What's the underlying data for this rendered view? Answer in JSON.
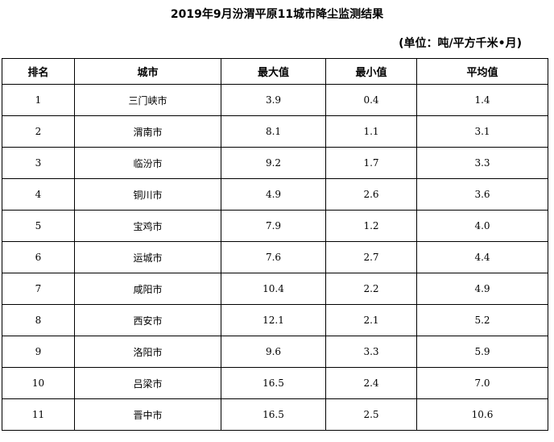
{
  "title": "2019年9月汾渭平原11城市降尘监测结果",
  "unit": "(单位：吨/平方千米•月)",
  "table": {
    "headers": [
      "排名",
      "城市",
      "最大值",
      "最小值",
      "平均值"
    ],
    "rows": [
      [
        "1",
        "三门峡市",
        "3.9",
        "0.4",
        "1.4"
      ],
      [
        "2",
        "渭南市",
        "8.1",
        "1.1",
        "3.1"
      ],
      [
        "3",
        "临汾市",
        "9.2",
        "1.7",
        "3.3"
      ],
      [
        "4",
        "铜川市",
        "4.9",
        "2.6",
        "3.6"
      ],
      [
        "5",
        "宝鸡市",
        "7.9",
        "1.2",
        "4.0"
      ],
      [
        "6",
        "运城市",
        "7.6",
        "2.7",
        "4.4"
      ],
      [
        "7",
        "咸阳市",
        "10.4",
        "2.2",
        "4.9"
      ],
      [
        "8",
        "西安市",
        "12.1",
        "2.1",
        "5.2"
      ],
      [
        "9",
        "洛阳市",
        "9.6",
        "3.3",
        "5.9"
      ],
      [
        "10",
        "吕梁市",
        "16.5",
        "2.4",
        "7.0"
      ],
      [
        "11",
        "晋中市",
        "16.5",
        "2.5",
        "10.6"
      ]
    ]
  }
}
